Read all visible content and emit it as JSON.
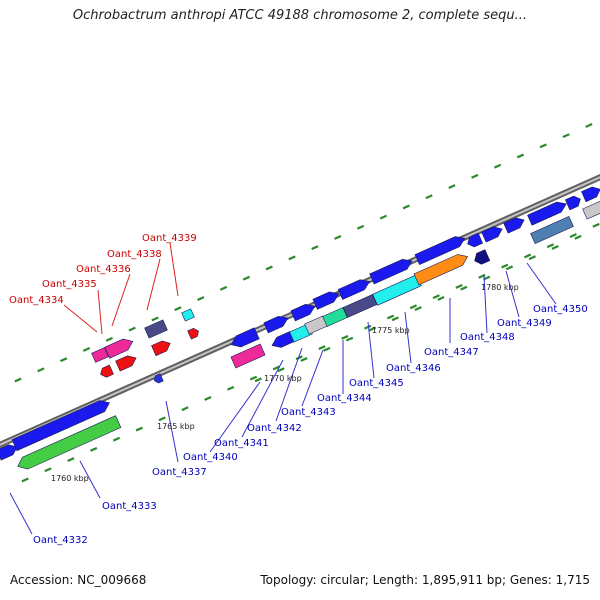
{
  "title": "Ochrobactrum anthropi ATCC 49188 chromosome 2, complete sequ...",
  "footer": {
    "accession": "Accession: NC_009668",
    "summary": "Topology: circular; Length: 1,895,911 bp; Genes: 1,715"
  },
  "colors": {
    "backbone": "#a8a8a8",
    "tick": "#2a8a2a",
    "label_blue": "#0000bb",
    "label_red": "#cc0000",
    "leader_blue": "#3333cc",
    "leader_red": "#dd2222"
  },
  "scale_labels": [
    "1760 kbp",
    "1765 kbp",
    "1770 kbp",
    "1775 kbp",
    "1780 kbp"
  ],
  "gene_labels": {
    "red": [
      "Oant_4339",
      "Oant_4338",
      "Oant_4336",
      "Oant_4335",
      "Oant_4334"
    ],
    "blue": [
      "Oant_4332",
      "Oant_4333",
      "Oant_4337",
      "Oant_4340",
      "Oant_4341",
      "Oant_4342",
      "Oant_4343",
      "Oant_4344",
      "Oant_4345",
      "Oant_4346",
      "Oant_4347",
      "Oant_4348",
      "Oant_4349",
      "Oant_4350"
    ]
  }
}
